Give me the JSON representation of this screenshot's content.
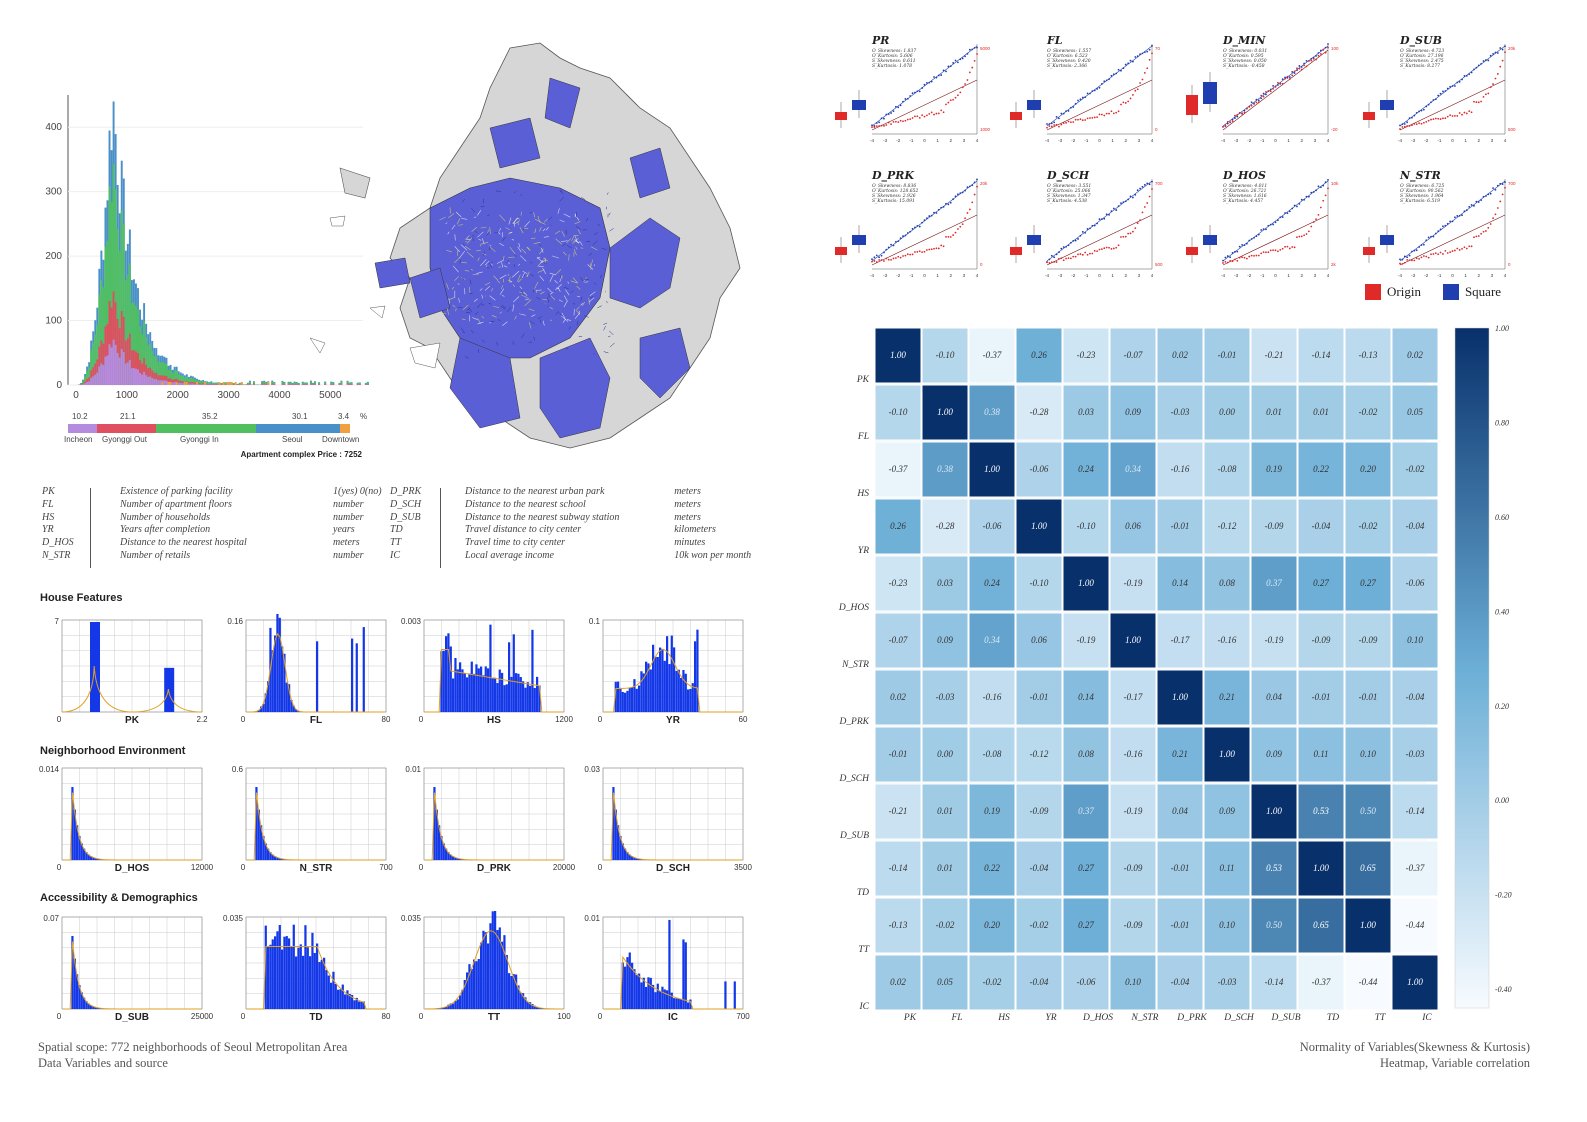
{
  "price_histogram": {
    "y_ticks": [
      "400",
      "300",
      "200",
      "100",
      "0"
    ],
    "x_ticks": [
      "0",
      "1000",
      "2000",
      "3000",
      "4000",
      "5000"
    ],
    "bar_percentages": [
      "10.2",
      "21.1",
      "35.2",
      "30.1",
      "3.4",
      "%"
    ],
    "bar_labels": [
      "Incheon",
      "Gyonggi Out",
      "Gyonggi In",
      "Seoul",
      "Downtown"
    ],
    "bar_colors": [
      "#b58be0",
      "#e04f5f",
      "#4fbf5f",
      "#4a90c8",
      "#f0a040"
    ],
    "price_caption": "Apartment complex Price : 7252"
  },
  "map": {
    "fill_colors": {
      "region": "#5a5fd6",
      "other": "#d6d6d6",
      "road": "#e8e060"
    }
  },
  "variables_left": [
    {
      "code": "PK",
      "desc": "Existence of parking facility",
      "unit": "1(yes) 0(no)"
    },
    {
      "code": "FL",
      "desc": "Number of apartment floors",
      "unit": "number"
    },
    {
      "code": "HS",
      "desc": "Number of households",
      "unit": "number"
    },
    {
      "code": "YR",
      "desc": "Years after completion",
      "unit": "years"
    },
    {
      "code": "D_HOS",
      "desc": "Distance to the nearest hospital",
      "unit": "meters"
    },
    {
      "code": "N_STR",
      "desc": "Number of retails",
      "unit": "number"
    }
  ],
  "variables_right": [
    {
      "code": "D_PRK",
      "desc": "Distance to the nearest urban park",
      "unit": "meters"
    },
    {
      "code": "D_SCH",
      "desc": "Distance to the nearest school",
      "unit": "meters"
    },
    {
      "code": "D_SUB",
      "desc": "Distance to the nearest subway station",
      "unit": "meters"
    },
    {
      "code": "TD",
      "desc": "Travel distance to city center",
      "unit": "kilometers"
    },
    {
      "code": "TT",
      "desc": "Travel time to city center",
      "unit": "minutes"
    },
    {
      "code": "IC",
      "desc": "Local average income",
      "unit": "10k won per month"
    }
  ],
  "sections": {
    "house": "House Features",
    "neighborhood": "Neighborhood Environment",
    "access": "Accessibility & Demographics"
  },
  "small_hists": [
    {
      "label": "PK",
      "ymax": "7",
      "xmin": "0",
      "xmax": "2.2",
      "shape": "pk"
    },
    {
      "label": "FL",
      "ymax": "0.16",
      "xmin": "0",
      "xmax": "80",
      "shape": "fl"
    },
    {
      "label": "HS",
      "ymax": "0.003",
      "xmin": "0",
      "xmax": "1200",
      "shape": "hs"
    },
    {
      "label": "YR",
      "ymax": "0.1",
      "xmin": "0",
      "xmax": "60",
      "shape": "yr"
    },
    {
      "label": "D_HOS",
      "ymax": "0.014",
      "xmin": "0",
      "xmax": "12000",
      "shape": "decay"
    },
    {
      "label": "N_STR",
      "ymax": "0.6",
      "xmin": "0",
      "xmax": "700",
      "shape": "decay"
    },
    {
      "label": "D_PRK",
      "ymax": "0.01",
      "xmin": "0",
      "xmax": "20000",
      "shape": "decay"
    },
    {
      "label": "D_SCH",
      "ymax": "0.03",
      "xmin": "0",
      "xmax": "3500",
      "shape": "decay"
    },
    {
      "label": "D_SUB",
      "ymax": "0.07",
      "xmin": "0",
      "xmax": "25000",
      "shape": "decay"
    },
    {
      "label": "TD",
      "ymax": "0.035",
      "xmin": "0",
      "xmax": "80",
      "shape": "td"
    },
    {
      "label": "TT",
      "ymax": "0.035",
      "xmin": "0",
      "xmax": "100",
      "shape": "tt"
    },
    {
      "label": "IC",
      "ymax": "0.01",
      "xmin": "0",
      "xmax": "700",
      "shape": "ic"
    }
  ],
  "captions": {
    "left1": "Spatial scope: 772 neighborhoods of Seoul Metropolitan Area",
    "left2": "Data Variables and source",
    "right1": "Normality of Variables(Skewness & Kurtosis)",
    "right2": "Heatmap, Variable correlation"
  },
  "qq_plots": [
    {
      "title": "PR",
      "stats": [
        "O_Skewness: 1.837",
        "O_Kurtosis: 5.606",
        "S_Skewness: 0.611",
        "S_Kurtosis: 1.078"
      ],
      "rticks": [
        "5000",
        "1000"
      ]
    },
    {
      "title": "FL",
      "stats": [
        "O_Skewness: 1.557",
        "O_Kurtosis: 6.523",
        "S_Skewness: 0.420",
        "S_Kurtosis: 2.366"
      ],
      "rticks": [
        "70",
        "0"
      ]
    },
    {
      "title": "D_MIN",
      "stats": [
        "O_Skewness: 0.031",
        "O_Kurtosis: 0.595",
        "S_Skewness: 0.050",
        "S_Kurtosis: -0.458"
      ],
      "rticks": [
        "100",
        "-20"
      ]
    },
    {
      "title": "D_SUB",
      "stats": [
        "O_Skewness: 4.723",
        "O_Kurtosis: 27.196",
        "S_Skewness: 2.475",
        "S_Kurtosis: 8.277"
      ],
      "rticks": [
        "20k",
        "500"
      ]
    },
    {
      "title": "D_PRK",
      "stats": [
        "O_Skewness: 8.836",
        "O_Kurtosis: 128.652",
        "S_Skewness: 2.926",
        "S_Kurtosis: 15.091"
      ],
      "rticks": [
        "20k",
        "0"
      ]
    },
    {
      "title": "D_SCH",
      "stats": [
        "O_Skewness: 3.551",
        "O_Kurtosis: 25.066",
        "S_Skewness: 1.347",
        "S_Kurtosis: 4.538"
      ],
      "rticks": [
        "700",
        "500"
      ]
    },
    {
      "title": "D_HOS",
      "stats": [
        "O_Skewness: 4.011",
        "O_Kurtosis: 26.721",
        "S_Skewness: 1.616",
        "S_Kurtosis: 4.457"
      ],
      "rticks": [
        "10k",
        "2k"
      ]
    },
    {
      "title": "N_STR",
      "stats": [
        "O_Skewness: 6.725",
        "O_Kurtosis: 90.562",
        "S_Skewness: 1.964",
        "S_Kurtosis: 6.519"
      ],
      "rticks": [
        "700",
        "0"
      ]
    }
  ],
  "qq_axis": [
    "-4",
    "-3",
    "-2",
    "-1",
    "0",
    "1",
    "2",
    "3",
    "4"
  ],
  "legend": {
    "origin": "Origin",
    "square": "Square",
    "origin_color": "#e02a2a",
    "square_color": "#1f3fb0"
  },
  "heatmap": {
    "labels": [
      "PK",
      "FL",
      "HS",
      "YR",
      "D_HOS",
      "N_STR",
      "D_PRK",
      "D_SCH",
      "D_SUB",
      "TD",
      "TT",
      "IC"
    ],
    "colorbar_ticks": [
      "1.00",
      "0.80",
      "0.60",
      "0.40",
      "0.20",
      "0.00",
      "-0.20",
      "-0.40"
    ]
  },
  "chart_data": [
    {
      "type": "bar",
      "title": "",
      "categories": [
        "Incheon",
        "Gyonggi Out",
        "Gyonggi In",
        "Seoul",
        "Downtown"
      ],
      "values": [
        10.2,
        21.1,
        35.2,
        30.1,
        3.4
      ],
      "xlabel": "",
      "ylabel": "%"
    },
    {
      "type": "heatmap",
      "title": "",
      "x": [
        "PK",
        "FL",
        "HS",
        "YR",
        "D_HOS",
        "N_STR",
        "D_PRK",
        "D_SCH",
        "D_SUB",
        "TD",
        "TT",
        "IC"
      ],
      "y": [
        "PK",
        "FL",
        "HS",
        "YR",
        "D_HOS",
        "N_STR",
        "D_PRK",
        "D_SCH",
        "D_SUB",
        "TD",
        "TT",
        "IC"
      ],
      "values": [
        [
          1.0,
          -0.1,
          -0.37,
          0.26,
          -0.23,
          -0.07,
          0.02,
          -0.01,
          -0.21,
          -0.14,
          -0.13,
          0.02
        ],
        [
          -0.1,
          1.0,
          0.38,
          -0.28,
          0.03,
          0.09,
          -0.03,
          0.0,
          0.01,
          0.01,
          -0.02,
          0.05
        ],
        [
          -0.37,
          0.38,
          1.0,
          -0.06,
          0.24,
          0.34,
          -0.16,
          -0.08,
          0.19,
          0.22,
          0.2,
          -0.02
        ],
        [
          0.26,
          -0.28,
          -0.06,
          1.0,
          -0.1,
          0.06,
          -0.01,
          -0.12,
          -0.09,
          -0.04,
          -0.02,
          -0.04
        ],
        [
          -0.23,
          0.03,
          0.24,
          -0.1,
          1.0,
          -0.19,
          0.14,
          0.08,
          0.37,
          0.27,
          0.27,
          -0.06
        ],
        [
          -0.07,
          0.09,
          0.34,
          0.06,
          -0.19,
          1.0,
          -0.17,
          -0.16,
          -0.19,
          -0.09,
          -0.09,
          0.1
        ],
        [
          0.02,
          -0.03,
          -0.16,
          -0.01,
          0.14,
          -0.17,
          1.0,
          0.21,
          0.04,
          -0.01,
          -0.01,
          -0.04
        ],
        [
          -0.01,
          0.0,
          -0.08,
          -0.12,
          0.08,
          -0.16,
          0.21,
          1.0,
          0.09,
          0.11,
          0.1,
          -0.03
        ],
        [
          -0.21,
          0.01,
          0.19,
          -0.09,
          0.37,
          -0.19,
          0.04,
          0.09,
          1.0,
          0.53,
          0.5,
          -0.14
        ],
        [
          -0.14,
          0.01,
          0.22,
          -0.04,
          0.27,
          -0.09,
          -0.01,
          0.11,
          0.53,
          1.0,
          0.65,
          -0.37
        ],
        [
          -0.13,
          -0.02,
          0.2,
          -0.02,
          0.27,
          -0.09,
          -0.01,
          0.1,
          0.5,
          0.65,
          1.0,
          -0.44
        ],
        [
          0.02,
          0.05,
          -0.02,
          -0.04,
          -0.06,
          0.1,
          -0.04,
          -0.03,
          -0.14,
          -0.37,
          -0.44,
          1.0
        ]
      ],
      "range": [
        -0.44,
        1.0
      ]
    }
  ]
}
